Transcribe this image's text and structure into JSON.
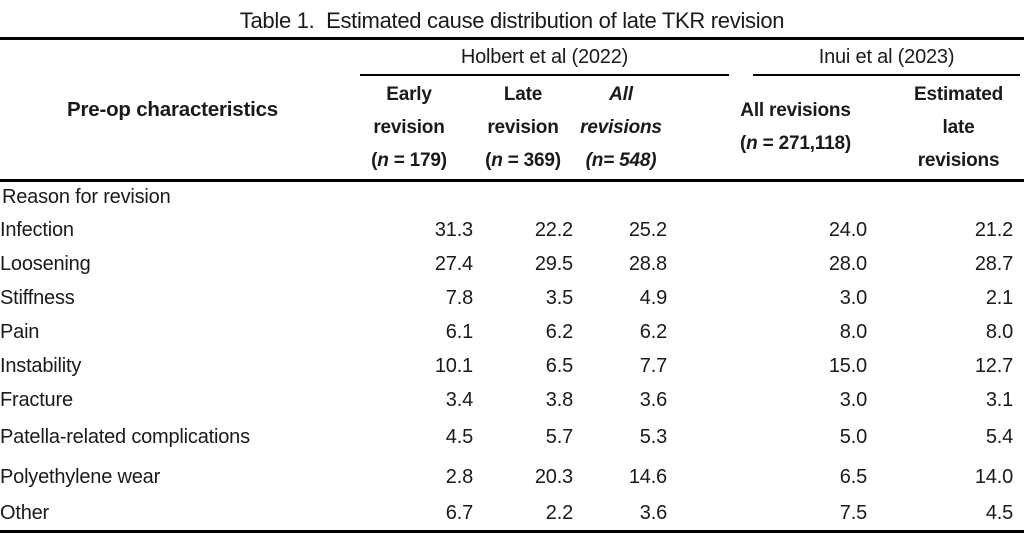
{
  "title": "Table 1.  Estimated cause distribution of late TKR revision",
  "colors": {
    "background": "#ffffff",
    "text": "#1a1a1a",
    "rule": "#000000"
  },
  "table": {
    "stub_header": "Pre-op characteristics",
    "groups": [
      {
        "id": "holbert",
        "label": "Holbert et al (2022)"
      },
      {
        "id": "inui",
        "label": "Inui et al (2023)"
      }
    ],
    "columns": [
      {
        "id": "early-revision",
        "group": "holbert",
        "italic": false,
        "lines": [
          [
            {
              "t": "Early"
            }
          ],
          [
            {
              "t": "revision"
            }
          ],
          [
            {
              "t": "("
            },
            {
              "t": "n",
              "i": true
            },
            {
              "t": " = 179)"
            }
          ]
        ]
      },
      {
        "id": "late-revision",
        "group": "holbert",
        "italic": false,
        "lines": [
          [
            {
              "t": "Late"
            }
          ],
          [
            {
              "t": "revision"
            }
          ],
          [
            {
              "t": "("
            },
            {
              "t": "n",
              "i": true
            },
            {
              "t": " = 369)"
            }
          ]
        ]
      },
      {
        "id": "all-revisions-holbert",
        "group": "holbert",
        "italic": true,
        "lines": [
          [
            {
              "t": "All"
            }
          ],
          [
            {
              "t": "revisions"
            }
          ],
          [
            {
              "t": "(n= 548)"
            }
          ]
        ]
      },
      {
        "id": "all-revisions-inui",
        "group": "inui",
        "italic": false,
        "lines": [
          [
            {
              "t": "All revisions"
            }
          ],
          [
            {
              "t": "("
            },
            {
              "t": "n",
              "i": true
            },
            {
              "t": " = 271,118)"
            }
          ]
        ]
      },
      {
        "id": "estimated-late-revisions",
        "group": "inui",
        "italic": false,
        "lines": [
          [
            {
              "t": "Estimated"
            }
          ],
          [
            {
              "t": "late"
            }
          ],
          [
            {
              "t": "revisions"
            }
          ]
        ]
      }
    ],
    "rows": [
      {
        "label": "Reason for revision",
        "section": true,
        "values": []
      },
      {
        "label": "Infection",
        "values": [
          "31.3",
          "22.2",
          "25.2",
          "24.0",
          "21.2"
        ]
      },
      {
        "label": "Loosening",
        "values": [
          "27.4",
          "29.5",
          "28.8",
          "28.0",
          "28.7"
        ]
      },
      {
        "label": "Stiffness",
        "values": [
          "7.8",
          "3.5",
          "4.9",
          "3.0",
          "2.1"
        ]
      },
      {
        "label": "Pain",
        "values": [
          "6.1",
          "6.2",
          "6.2",
          "8.0",
          "8.0"
        ]
      },
      {
        "label": "Instability",
        "values": [
          "10.1",
          "6.5",
          "7.7",
          "15.0",
          "12.7"
        ]
      },
      {
        "label": "Fracture",
        "values": [
          "3.4",
          "3.8",
          "3.6",
          "3.0",
          "3.1"
        ]
      },
      {
        "label": "Patella-related complications",
        "values": [
          "4.5",
          "5.7",
          "5.3",
          "5.0",
          "5.4"
        ]
      },
      {
        "label": "Polyethylene wear",
        "values": [
          "2.8",
          "20.3",
          "14.6",
          "6.5",
          "14.0"
        ]
      },
      {
        "label": "Other",
        "values": [
          "6.7",
          "2.2",
          "3.6",
          "7.5",
          "4.5"
        ]
      }
    ]
  }
}
